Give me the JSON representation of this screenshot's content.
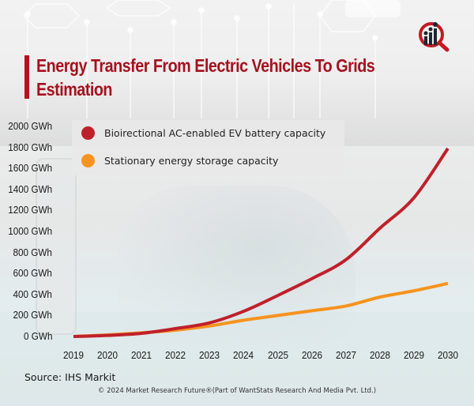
{
  "header": {
    "title_line1": "Energy Transfer From Electric Vehicles To Grids",
    "title_line2": "Estimation",
    "logo_icon": "magnifier-bar-chart-icon"
  },
  "colors": {
    "title": "#a5121f",
    "series_ev": "#c0202b",
    "series_stationary": "#f7931e"
  },
  "chart_data": {
    "type": "line",
    "title": "Energy Transfer From Electric Vehicles To Grids Estimation",
    "xlabel": "",
    "ylabel": "",
    "x": [
      "2019",
      "2020",
      "2021",
      "2022",
      "2023",
      "2024",
      "2025",
      "2026",
      "2027",
      "2028",
      "2029",
      "2030"
    ],
    "yticks": [
      "0 GWh",
      "200 GWh",
      "400 GWh",
      "600 GWh",
      "800 GWh",
      "1000 GWh",
      "1200 GWh",
      "1400 GWh",
      "1600 GWh",
      "1800 GWh",
      "2000 GWh"
    ],
    "ylim": [
      0,
      2000
    ],
    "grid": false,
    "legend_position": "top-left",
    "series": [
      {
        "name": "Bioirectional AC-enabled EV battery capacity",
        "color": "#c0202b",
        "values": [
          0,
          10,
          30,
          75,
          130,
          240,
          390,
          550,
          730,
          1030,
          1320,
          1790
        ]
      },
      {
        "name": "Stationary energy storage capacity",
        "color": "#f7931e",
        "values": [
          0,
          15,
          35,
          60,
          100,
          155,
          200,
          245,
          290,
          375,
          435,
          505
        ]
      }
    ]
  },
  "legend": {
    "items": [
      {
        "label": "Bioirectional AC-enabled EV battery capacity",
        "color": "#c0202b"
      },
      {
        "label": "Stationary energy storage capacity",
        "color": "#f7931e"
      }
    ]
  },
  "footer": {
    "source": "Source: IHS Markit",
    "copyright": "© 2024 Market Research Future®(Part of WantStats Research And Media Pvt. Ltd.)"
  }
}
